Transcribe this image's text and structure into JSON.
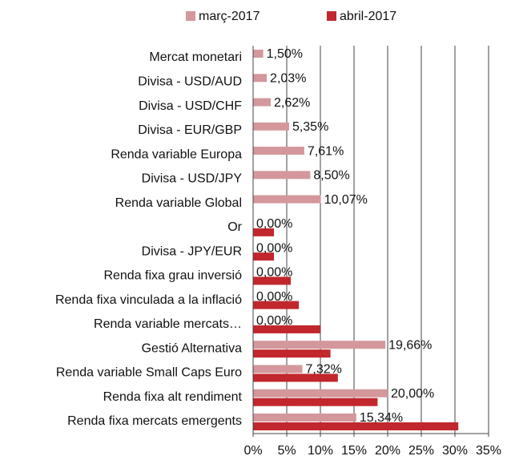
{
  "chart_data": {
    "type": "barh",
    "categories": [
      "Mercat monetari",
      "Divisa - USD/AUD",
      "Divisa - USD/CHF",
      "Divisa - EUR/GBP",
      "Renda variable Europa",
      "Divisa - USD/JPY",
      "Renda variable Global",
      "Or",
      "Divisa - JPY/EUR",
      "Renda fixa grau inversió",
      "Renda fixa vinculada a la inflació",
      "Renda variable mercats…",
      "Gestió Alternativa",
      "Renda variable Small Caps Euro",
      "Renda fixa alt rendiment",
      "Renda fixa mercats emergents"
    ],
    "series": [
      {
        "name": "març-2017",
        "color": "#d4979c",
        "values": [
          1.5,
          2.03,
          2.62,
          5.35,
          7.61,
          8.5,
          10.07,
          0,
          0,
          0,
          0,
          0,
          19.66,
          7.32,
          20.0,
          15.34
        ],
        "value_labels": [
          "1,50%",
          "2,03%",
          "2,62%",
          "5,35%",
          "7,61%",
          "8,50%",
          "10,07%",
          "0,00%",
          "0,00%",
          "0,00%",
          "0,00%",
          "0,00%",
          "19,66%",
          "7,32%",
          "20,00%",
          "15,34%"
        ]
      },
      {
        "name": "abril-2017",
        "color": "#c1272d",
        "values": [
          0,
          0,
          0,
          0,
          0,
          0,
          0,
          3.1,
          3.1,
          5.6,
          6.8,
          10.0,
          11.5,
          12.6,
          18.5,
          30.5
        ]
      }
    ],
    "xlim": [
      0,
      35
    ],
    "xticks": [
      {
        "value": 0,
        "label": "0%"
      },
      {
        "value": 5,
        "label": "5%"
      },
      {
        "value": 10,
        "label": "10%"
      },
      {
        "value": 15,
        "label": "15%"
      },
      {
        "value": 20,
        "label": "20%"
      },
      {
        "value": 25,
        "label": "25%"
      },
      {
        "value": 30,
        "label": "30%"
      },
      {
        "value": 35,
        "label": "35%"
      }
    ],
    "grid": true,
    "legend": "top"
  }
}
